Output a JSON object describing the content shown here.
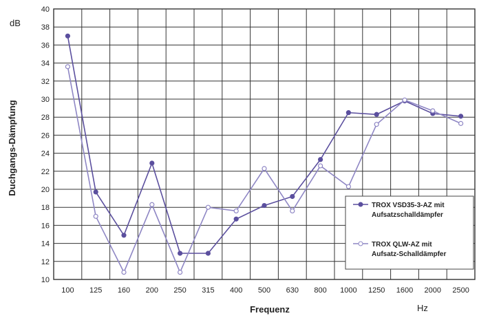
{
  "chart_data": {
    "type": "line",
    "xlabel": "Frequenz",
    "x_unit": "Hz",
    "ylabel": "Duchgangs-Dämpfung",
    "y_unit": "dB",
    "ylim": [
      10,
      40
    ],
    "y_ticks": [
      10,
      12,
      14,
      16,
      18,
      20,
      22,
      24,
      26,
      28,
      30,
      32,
      34,
      36,
      38,
      40
    ],
    "grid": true,
    "legend_position": "bottom-right",
    "categories": [
      "100",
      "125",
      "160",
      "200",
      "250",
      "315",
      "400",
      "500",
      "630",
      "800",
      "1000",
      "1250",
      "1600",
      "2000",
      "2500"
    ],
    "series": [
      {
        "name_line1": "TROX VSD35-3-AZ  mit",
        "name_line2": "Aufsatzschalldämpfer",
        "marker": "filled",
        "color": "#5b4f9e",
        "values": [
          37.0,
          19.7,
          14.9,
          22.9,
          12.9,
          12.9,
          16.7,
          18.2,
          19.2,
          23.3,
          28.5,
          28.3,
          29.8,
          28.4,
          28.1
        ]
      },
      {
        "name_line1": "TROX QLW-AZ  mit",
        "name_line2": "Aufsatz-Schalldämpfer",
        "marker": "open",
        "color": "#8e86c4",
        "values": [
          33.6,
          17.0,
          10.8,
          18.3,
          10.8,
          18.0,
          17.6,
          22.3,
          17.6,
          22.6,
          20.3,
          27.2,
          29.9,
          28.7,
          27.3
        ]
      }
    ]
  }
}
